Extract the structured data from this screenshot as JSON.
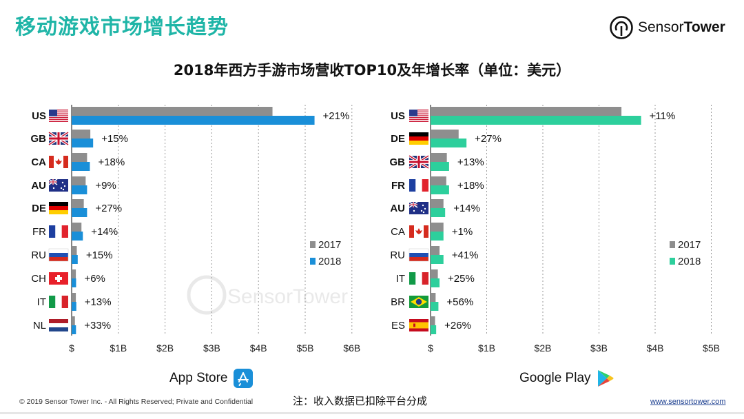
{
  "header": {
    "title": "移动游戏市场增长趋势"
  },
  "logo": {
    "name_a": "Sensor",
    "name_b": "Tower"
  },
  "watermark": "SensorTower",
  "chart_title": "2018年西方手游市场营收TOP10及年增长率（单位：美元）",
  "colors": {
    "bar2017": "#8e8e8e",
    "appstore2018": "#1a8fd8",
    "googleplay2018": "#2dcf9c",
    "teal": "#1fb5a7"
  },
  "chart_data": [
    {
      "type": "bar",
      "orientation": "horizontal",
      "store": "App Store",
      "categories": [
        "US",
        "GB",
        "CA",
        "AU",
        "DE",
        "FR",
        "RU",
        "CH",
        "IT",
        "NL"
      ],
      "bold_categories": [
        "US",
        "GB",
        "CA",
        "AU",
        "DE"
      ],
      "series": [
        {
          "name": "2017",
          "values": [
            4.3,
            0.4,
            0.33,
            0.3,
            0.26,
            0.21,
            0.11,
            0.09,
            0.09,
            0.07
          ]
        },
        {
          "name": "2018",
          "values": [
            5.2,
            0.46,
            0.39,
            0.33,
            0.33,
            0.24,
            0.13,
            0.095,
            0.1,
            0.093
          ]
        }
      ],
      "growth_labels": [
        "+21%",
        "+15%",
        "+18%",
        "+9%",
        "+27%",
        "+14%",
        "+15%",
        "+6%",
        "+13%",
        "+33%"
      ],
      "x_ticks": [
        "$",
        "$1B",
        "$2B",
        "$3B",
        "$4B",
        "$5B",
        "$6B"
      ],
      "xlim": [
        0,
        6
      ],
      "legend": [
        "2017",
        "2018"
      ]
    },
    {
      "type": "bar",
      "orientation": "horizontal",
      "store": "Google Play",
      "categories": [
        "US",
        "DE",
        "GB",
        "FR",
        "AU",
        "CA",
        "RU",
        "IT",
        "BR",
        "ES"
      ],
      "bold_categories": [
        "US",
        "DE",
        "GB",
        "FR",
        "AU"
      ],
      "series": [
        {
          "name": "2017",
          "values": [
            3.4,
            0.5,
            0.29,
            0.28,
            0.23,
            0.23,
            0.16,
            0.13,
            0.09,
            0.08
          ]
        },
        {
          "name": "2018",
          "values": [
            3.75,
            0.64,
            0.33,
            0.33,
            0.26,
            0.23,
            0.23,
            0.16,
            0.14,
            0.1
          ]
        }
      ],
      "growth_labels": [
        "+11%",
        "+27%",
        "+13%",
        "+18%",
        "+14%",
        "+1%",
        "+41%",
        "+25%",
        "+56%",
        "+26%"
      ],
      "x_ticks": [
        "$",
        "$1B",
        "$2B",
        "$3B",
        "$4B",
        "$5B"
      ],
      "xlim": [
        0,
        5
      ],
      "legend": [
        "2017",
        "2018"
      ]
    }
  ],
  "stores": {
    "left": "App Store",
    "right": "Google Play"
  },
  "footer": {
    "copyright": "© 2019 Sensor Tower Inc. - All Rights Reserved; Private and Confidential",
    "note": "注：收入数据已扣除平台分成",
    "url": "www.sensortower.com"
  }
}
